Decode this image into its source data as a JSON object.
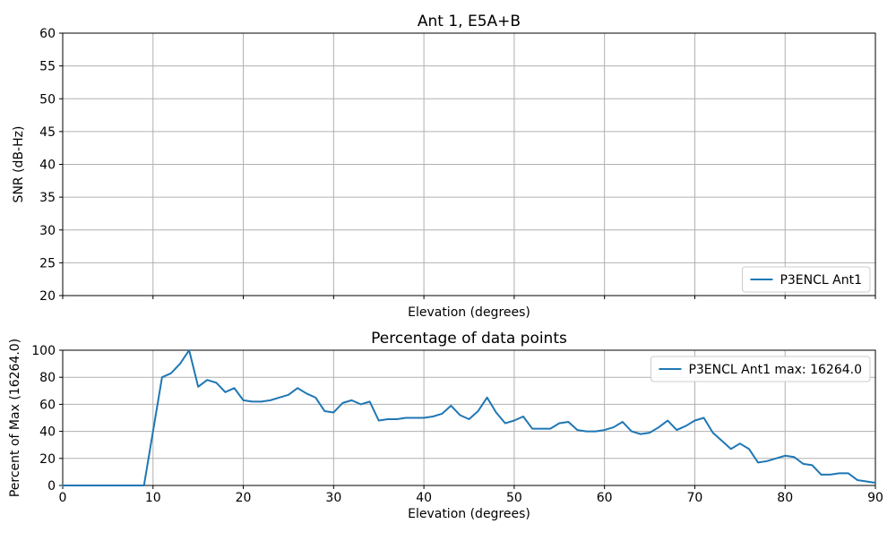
{
  "figure": {
    "background": "#ffffff",
    "line_color": "#1f77b4",
    "grid_color": "#b0b0b0",
    "spine_color": "#000000",
    "legend_frame_color": "#cccccc"
  },
  "chart_data": [
    {
      "type": "line",
      "title": "Ant 1, E5A+B",
      "xlabel": "Elevation (degrees)",
      "ylabel": "SNR (dB-Hz)",
      "xlim": [
        0,
        90
      ],
      "ylim": [
        20,
        60
      ],
      "xticks": [
        0,
        10,
        20,
        30,
        40,
        50,
        60,
        70,
        80,
        90
      ],
      "yticks": [
        20,
        25,
        30,
        35,
        40,
        45,
        50,
        55,
        60
      ],
      "xticklabels_visible": false,
      "grid": true,
      "legend": {
        "position": "lower right",
        "entries": [
          {
            "label": "P3ENCL Ant1",
            "color": "#1f77b4"
          }
        ]
      },
      "series": []
    },
    {
      "type": "line",
      "title": "Percentage of data points",
      "xlabel": "Elevation (degrees)",
      "ylabel": "Percent of Max (16264.0)",
      "xlim": [
        0,
        90
      ],
      "ylim": [
        0,
        100
      ],
      "xticks": [
        0,
        10,
        20,
        30,
        40,
        50,
        60,
        70,
        80,
        90
      ],
      "yticks": [
        0,
        20,
        40,
        60,
        80,
        100
      ],
      "xticklabels_visible": true,
      "grid": true,
      "legend": {
        "position": "upper right",
        "entries": [
          {
            "label": "P3ENCL Ant1 max: 16264.0",
            "color": "#1f77b4"
          }
        ]
      },
      "series": [
        {
          "name": "P3ENCL Ant1",
          "color": "#1f77b4",
          "x": [
            0,
            1,
            2,
            3,
            4,
            5,
            6,
            7,
            8,
            9,
            10,
            11,
            12,
            13,
            14,
            15,
            16,
            17,
            18,
            19,
            20,
            21,
            22,
            23,
            24,
            25,
            26,
            27,
            28,
            29,
            30,
            31,
            32,
            33,
            34,
            35,
            36,
            37,
            38,
            39,
            40,
            41,
            42,
            43,
            44,
            45,
            46,
            47,
            48,
            49,
            50,
            51,
            52,
            53,
            54,
            55,
            56,
            57,
            58,
            59,
            60,
            61,
            62,
            63,
            64,
            65,
            66,
            67,
            68,
            69,
            70,
            71,
            72,
            73,
            74,
            75,
            76,
            77,
            78,
            79,
            80,
            81,
            82,
            83,
            84,
            85,
            86,
            87,
            88,
            89,
            90
          ],
          "y": [
            0,
            0,
            0,
            0,
            0,
            0,
            0,
            0,
            0,
            0,
            40,
            80,
            83,
            90,
            100,
            73,
            78,
            76,
            69,
            72,
            63,
            62,
            62,
            63,
            65,
            67,
            72,
            68,
            65,
            55,
            54,
            61,
            63,
            60,
            62,
            48,
            49,
            49,
            50,
            50,
            50,
            51,
            53,
            59,
            52,
            49,
            55,
            65,
            54,
            46,
            48,
            51,
            42,
            42,
            42,
            46,
            47,
            41,
            40,
            40,
            41,
            43,
            47,
            40,
            38,
            39,
            43,
            48,
            41,
            44,
            48,
            50,
            39,
            33,
            27,
            31,
            27,
            17,
            18,
            20,
            22,
            21,
            16,
            15,
            8,
            8,
            9,
            9,
            4,
            3,
            2
          ]
        }
      ]
    }
  ]
}
